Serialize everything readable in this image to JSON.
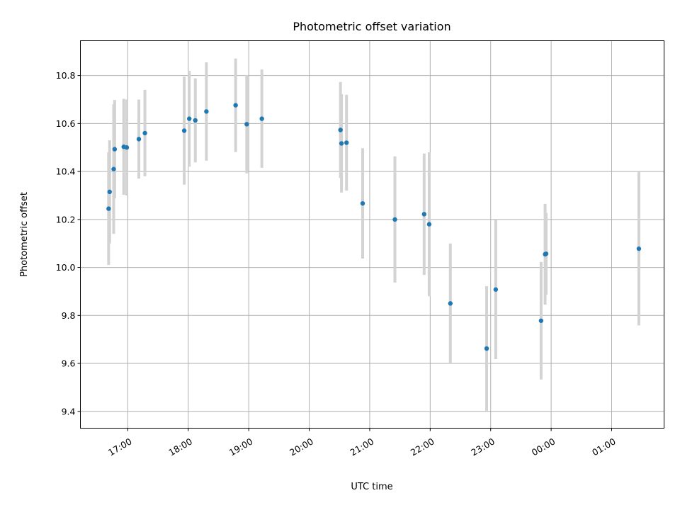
{
  "chart_data": {
    "type": "scatter",
    "title": "Photometric offset variation",
    "xlabel": "UTC time",
    "ylabel": "Photometric offset",
    "xlim": [
      "2024-01-01T16:13:00",
      "2024-01-02T01:52:00"
    ],
    "ylim": [
      9.33,
      10.945
    ],
    "y_ticks": [
      9.4,
      9.6,
      9.8,
      10.0,
      10.2,
      10.4,
      10.6,
      10.8
    ],
    "x_ticks": [
      {
        "t": "2024-01-01T17:00:00",
        "label": "17:00"
      },
      {
        "t": "2024-01-01T18:00:00",
        "label": "18:00"
      },
      {
        "t": "2024-01-01T19:00:00",
        "label": "19:00"
      },
      {
        "t": "2024-01-01T20:00:00",
        "label": "20:00"
      },
      {
        "t": "2024-01-01T21:00:00",
        "label": "21:00"
      },
      {
        "t": "2024-01-01T22:00:00",
        "label": "22:00"
      },
      {
        "t": "2024-01-01T23:00:00",
        "label": "23:00"
      },
      {
        "t": "2024-01-02T00:00:00",
        "label": "00:00"
      },
      {
        "t": "2024-01-02T01:00:00",
        "label": "01:00"
      }
    ],
    "grid": true,
    "point_color": "#1f77b4",
    "errorbar_color": "#d3d3d3",
    "points": [
      {
        "t": "2024-01-01T16:41:00",
        "y": 10.245,
        "err": 0.235
      },
      {
        "t": "2024-01-01T16:42:00",
        "y": 10.315,
        "err": 0.215
      },
      {
        "t": "2024-01-01T16:46:00",
        "y": 10.41,
        "err": 0.27
      },
      {
        "t": "2024-01-01T16:47:00",
        "y": 10.493,
        "err": 0.205
      },
      {
        "t": "2024-01-01T16:56:00",
        "y": 10.503,
        "err": 0.2
      },
      {
        "t": "2024-01-01T16:59:00",
        "y": 10.5,
        "err": 0.2
      },
      {
        "t": "2024-01-01T17:11:00",
        "y": 10.535,
        "err": 0.165
      },
      {
        "t": "2024-01-01T17:17:00",
        "y": 10.56,
        "err": 0.18
      },
      {
        "t": "2024-01-01T17:56:00",
        "y": 10.57,
        "err": 0.225
      },
      {
        "t": "2024-01-01T18:01:00",
        "y": 10.62,
        "err": 0.2
      },
      {
        "t": "2024-01-01T18:07:00",
        "y": 10.613,
        "err": 0.175
      },
      {
        "t": "2024-01-01T18:18:00",
        "y": 10.65,
        "err": 0.205
      },
      {
        "t": "2024-01-01T18:47:00",
        "y": 10.676,
        "err": 0.195
      },
      {
        "t": "2024-01-01T18:58:00",
        "y": 10.597,
        "err": 0.205
      },
      {
        "t": "2024-01-01T19:13:00",
        "y": 10.62,
        "err": 0.205
      },
      {
        "t": "2024-01-01T20:31:00",
        "y": 10.573,
        "err": 0.2
      },
      {
        "t": "2024-01-01T20:32:00",
        "y": 10.517,
        "err": 0.205
      },
      {
        "t": "2024-01-01T20:37:00",
        "y": 10.52,
        "err": 0.2
      },
      {
        "t": "2024-01-01T20:53:00",
        "y": 10.267,
        "err": 0.23
      },
      {
        "t": "2024-01-01T21:25:00",
        "y": 10.2,
        "err": 0.263
      },
      {
        "t": "2024-01-01T21:54:00",
        "y": 10.222,
        "err": 0.253
      },
      {
        "t": "2024-01-01T21:59:00",
        "y": 10.18,
        "err": 0.3
      },
      {
        "t": "2024-01-01T22:20:00",
        "y": 9.85,
        "err": 0.25
      },
      {
        "t": "2024-01-01T22:56:00",
        "y": 9.662,
        "err": 0.26
      },
      {
        "t": "2024-01-01T23:05:00",
        "y": 9.908,
        "err": 0.29
      },
      {
        "t": "2024-01-01T23:50:00",
        "y": 9.778,
        "err": 0.245
      },
      {
        "t": "2024-01-01T23:54:00",
        "y": 10.055,
        "err": 0.21
      },
      {
        "t": "2024-01-01T23:55:00",
        "y": 10.057,
        "err": 0.17
      },
      {
        "t": "2024-01-02T01:27:00",
        "y": 10.078,
        "err": 0.32
      }
    ]
  }
}
